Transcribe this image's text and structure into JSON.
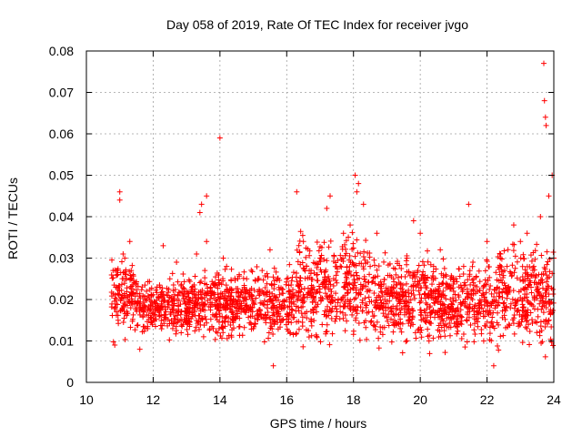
{
  "chart_data": {
    "type": "scatter",
    "title": "Day 058 of 2019, Rate Of TEC Index for receiver jvgo",
    "xlabel": "GPS time / hours",
    "ylabel": "ROTI / TECUs",
    "xlim": [
      10,
      24
    ],
    "ylim": [
      0,
      0.08
    ],
    "xticks": [
      10,
      12,
      14,
      16,
      18,
      20,
      22,
      24
    ],
    "yticks": [
      0,
      0.01,
      0.02,
      0.03,
      0.04,
      0.05,
      0.06,
      0.07,
      0.08
    ],
    "xtick_labels": [
      "10",
      "12",
      "14",
      "16",
      "18",
      "20",
      "22",
      "24"
    ],
    "ytick_labels": [
      "0",
      "0.01",
      "0.02",
      "0.03",
      "0.04",
      "0.05",
      "0.06",
      "0.07",
      "0.08"
    ],
    "grid": true,
    "marker": "+",
    "color": "#ff0000",
    "series": [
      {
        "name": "ROTI",
        "points": [
          [
            10.8,
            0.027
          ],
          [
            10.85,
            0.009
          ],
          [
            10.9,
            0.02
          ],
          [
            10.95,
            0.015
          ],
          [
            11.0,
            0.046
          ],
          [
            11.0,
            0.044
          ],
          [
            11.1,
            0.031
          ],
          [
            11.15,
            0.03
          ],
          [
            11.2,
            0.025
          ],
          [
            11.3,
            0.034
          ],
          [
            11.5,
            0.018
          ],
          [
            11.6,
            0.008
          ],
          [
            11.8,
            0.022
          ],
          [
            12.0,
            0.015
          ],
          [
            12.3,
            0.033
          ],
          [
            12.5,
            0.025
          ],
          [
            12.7,
            0.029
          ],
          [
            13.0,
            0.018
          ],
          [
            13.3,
            0.031
          ],
          [
            13.4,
            0.041
          ],
          [
            13.45,
            0.043
          ],
          [
            13.6,
            0.045
          ],
          [
            13.6,
            0.034
          ],
          [
            13.8,
            0.013
          ],
          [
            14.0,
            0.059
          ],
          [
            14.1,
            0.03
          ],
          [
            14.2,
            0.028
          ],
          [
            14.5,
            0.018
          ],
          [
            14.8,
            0.025
          ],
          [
            15.0,
            0.013
          ],
          [
            15.2,
            0.022
          ],
          [
            15.5,
            0.032
          ],
          [
            15.6,
            0.004
          ],
          [
            15.8,
            0.016
          ],
          [
            16.0,
            0.025
          ],
          [
            16.1,
            0.012
          ],
          [
            16.3,
            0.046
          ],
          [
            16.5,
            0.034
          ],
          [
            16.7,
            0.022
          ],
          [
            17.0,
            0.03
          ],
          [
            17.2,
            0.042
          ],
          [
            17.3,
            0.045
          ],
          [
            17.5,
            0.024
          ],
          [
            17.7,
            0.036
          ],
          [
            17.9,
            0.038
          ],
          [
            18.05,
            0.05
          ],
          [
            18.1,
            0.046
          ],
          [
            18.15,
            0.048
          ],
          [
            18.3,
            0.043
          ],
          [
            18.5,
            0.028
          ],
          [
            18.7,
            0.036
          ],
          [
            18.9,
            0.019
          ],
          [
            19.2,
            0.025
          ],
          [
            19.4,
            0.013
          ],
          [
            19.6,
            0.03
          ],
          [
            19.8,
            0.039
          ],
          [
            20.0,
            0.036
          ],
          [
            20.2,
            0.015
          ],
          [
            20.4,
            0.028
          ],
          [
            20.6,
            0.032
          ],
          [
            20.9,
            0.02
          ],
          [
            21.0,
            0.022
          ],
          [
            21.3,
            0.028
          ],
          [
            21.45,
            0.043
          ],
          [
            21.6,
            0.025
          ],
          [
            21.9,
            0.01
          ],
          [
            22.0,
            0.034
          ],
          [
            22.2,
            0.004
          ],
          [
            22.4,
            0.03
          ],
          [
            22.6,
            0.028
          ],
          [
            22.8,
            0.038
          ],
          [
            23.0,
            0.034
          ],
          [
            23.2,
            0.036
          ],
          [
            23.4,
            0.028
          ],
          [
            23.6,
            0.04
          ],
          [
            23.7,
            0.077
          ],
          [
            23.72,
            0.068
          ],
          [
            23.75,
            0.064
          ],
          [
            23.77,
            0.062
          ],
          [
            23.85,
            0.045
          ],
          [
            23.95,
            0.05
          ],
          [
            24.0,
            0.03
          ]
        ]
      }
    ],
    "dense_band": [
      {
        "x0": 10.75,
        "x1": 11.5,
        "lo": 0.008,
        "hi": 0.033
      },
      {
        "x0": 11.5,
        "x1": 13.5,
        "lo": 0.009,
        "hi": 0.028
      },
      {
        "x0": 13.5,
        "x1": 15.5,
        "lo": 0.008,
        "hi": 0.03
      },
      {
        "x0": 15.5,
        "x1": 16.3,
        "lo": 0.007,
        "hi": 0.03
      },
      {
        "x0": 16.3,
        "x1": 18.5,
        "lo": 0.007,
        "hi": 0.039
      },
      {
        "x0": 18.5,
        "x1": 20.5,
        "lo": 0.006,
        "hi": 0.034
      },
      {
        "x0": 20.5,
        "x1": 22.3,
        "lo": 0.006,
        "hi": 0.032
      },
      {
        "x0": 22.3,
        "x1": 24.0,
        "lo": 0.005,
        "hi": 0.037
      }
    ]
  }
}
